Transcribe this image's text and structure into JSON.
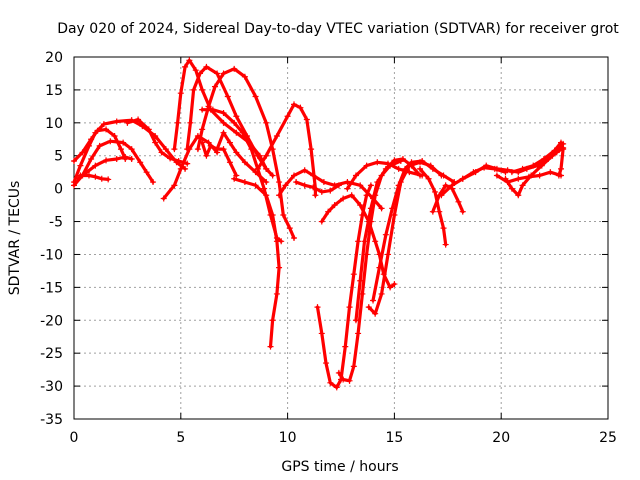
{
  "chart_data": {
    "type": "scatter",
    "title": "Day 020 of 2024, Sidereal Day-to-day VTEC variation (SDTVAR) for receiver grot",
    "xlabel": "GPS time / hours",
    "ylabel": "SDTVAR / TECUs",
    "xlim": [
      0,
      25
    ],
    "ylim": [
      -35,
      20
    ],
    "xticks": [
      0,
      5,
      10,
      15,
      20,
      25
    ],
    "yticks": [
      -35,
      -30,
      -25,
      -20,
      -15,
      -10,
      -5,
      0,
      5,
      10,
      15,
      20
    ],
    "grid": true,
    "marker": "+",
    "color": "#ff0000",
    "series": [
      {
        "points": [
          [
            0.0,
            1.0
          ],
          [
            0.3,
            3.5
          ],
          [
            0.7,
            6.5
          ],
          [
            1.0,
            8.5
          ],
          [
            1.4,
            9.8
          ],
          [
            2.0,
            10.2
          ],
          [
            2.7,
            10.4
          ],
          [
            3.2,
            9.5
          ],
          [
            3.8,
            8.0
          ],
          [
            4.3,
            6.0
          ],
          [
            4.8,
            4.0
          ],
          [
            5.2,
            3.0
          ]
        ]
      },
      {
        "points": [
          [
            0.0,
            0.5
          ],
          [
            0.4,
            2.0
          ],
          [
            0.8,
            4.5
          ],
          [
            1.2,
            6.5
          ],
          [
            1.7,
            7.2
          ],
          [
            2.3,
            7.0
          ],
          [
            2.7,
            6.0
          ],
          [
            3.1,
            4.0
          ],
          [
            3.4,
            2.5
          ],
          [
            3.7,
            1.0
          ]
        ]
      },
      {
        "points": [
          [
            0.0,
            4.2
          ],
          [
            0.4,
            5.5
          ],
          [
            0.8,
            7.5
          ],
          [
            1.1,
            8.8
          ],
          [
            1.5,
            9.0
          ],
          [
            1.9,
            8.0
          ],
          [
            2.2,
            6.0
          ],
          [
            2.4,
            4.5
          ]
        ]
      },
      {
        "points": [
          [
            0.2,
            1.5
          ],
          [
            0.6,
            2.5
          ],
          [
            1.0,
            3.5
          ],
          [
            1.5,
            4.3
          ],
          [
            2.0,
            4.5
          ],
          [
            2.4,
            4.8
          ],
          [
            2.7,
            4.5
          ]
        ]
      },
      {
        "points": [
          [
            0.3,
            2.0
          ],
          [
            0.7,
            2.0
          ],
          [
            1.0,
            1.8
          ],
          [
            1.3,
            1.5
          ],
          [
            1.6,
            1.4
          ]
        ]
      },
      {
        "points": [
          [
            2.5,
            10.0
          ],
          [
            3.0,
            10.5
          ],
          [
            3.5,
            9.0
          ],
          [
            3.8,
            7.0
          ],
          [
            4.1,
            5.5
          ],
          [
            4.5,
            4.6
          ],
          [
            4.9,
            4.2
          ],
          [
            5.3,
            3.8
          ]
        ]
      },
      {
        "points": [
          [
            4.2,
            -1.5
          ],
          [
            4.7,
            0.5
          ],
          [
            5.0,
            3.0
          ],
          [
            5.4,
            6.0
          ],
          [
            5.8,
            8.0
          ],
          [
            6.3,
            7.0
          ],
          [
            6.7,
            5.5
          ]
        ]
      },
      {
        "points": [
          [
            4.7,
            6.0
          ],
          [
            4.85,
            10.0
          ],
          [
            5.0,
            14.5
          ],
          [
            5.2,
            18.5
          ],
          [
            5.4,
            19.5
          ],
          [
            5.7,
            18.0
          ],
          [
            6.0,
            15.0
          ],
          [
            6.4,
            12.0
          ],
          [
            7.0,
            10.0
          ],
          [
            7.6,
            8.5
          ],
          [
            8.2,
            7.0
          ],
          [
            8.7,
            5.0
          ],
          [
            9.0,
            3.0
          ]
        ]
      },
      {
        "points": [
          [
            5.3,
            6.0
          ],
          [
            5.45,
            10.0
          ],
          [
            5.6,
            15.0
          ],
          [
            5.9,
            17.5
          ],
          [
            6.2,
            18.5
          ],
          [
            6.7,
            17.5
          ],
          [
            7.2,
            14.0
          ],
          [
            7.6,
            11.0
          ],
          [
            8.1,
            8.0
          ],
          [
            8.6,
            5.0
          ],
          [
            9.0,
            3.0
          ],
          [
            9.3,
            2.0
          ]
        ]
      },
      {
        "points": [
          [
            5.8,
            6.0
          ],
          [
            6.0,
            9.0
          ],
          [
            6.3,
            12.5
          ],
          [
            6.6,
            15.5
          ],
          [
            7.0,
            17.5
          ],
          [
            7.5,
            18.2
          ],
          [
            8.0,
            17.0
          ],
          [
            8.5,
            14.0
          ],
          [
            9.0,
            10.0
          ],
          [
            9.3,
            6.0
          ],
          [
            9.6,
            1.0
          ],
          [
            9.8,
            -4.0
          ],
          [
            10.1,
            -6.0
          ],
          [
            10.3,
            -7.5
          ]
        ]
      },
      {
        "points": [
          [
            6.0,
            12.0
          ],
          [
            6.5,
            12.0
          ],
          [
            7.0,
            11.5
          ],
          [
            7.5,
            10.0
          ],
          [
            7.9,
            8.5
          ],
          [
            8.3,
            6.0
          ],
          [
            8.6,
            3.0
          ],
          [
            8.9,
            0.0
          ],
          [
            9.2,
            -4.0
          ],
          [
            9.5,
            -7.5
          ],
          [
            9.7,
            -8.0
          ]
        ]
      },
      {
        "points": [
          [
            6.0,
            7.0
          ],
          [
            6.2,
            5.0
          ],
          [
            6.4,
            6.5
          ],
          [
            6.7,
            6.0
          ],
          [
            7.0,
            6.0
          ],
          [
            7.3,
            4.0
          ],
          [
            7.6,
            2.0
          ]
        ]
      },
      {
        "points": [
          [
            6.7,
            6.0
          ],
          [
            7.0,
            8.5
          ],
          [
            7.3,
            7.0
          ],
          [
            7.6,
            5.5
          ],
          [
            8.0,
            4.0
          ],
          [
            8.5,
            2.5
          ],
          [
            9.0,
            1.0
          ]
        ]
      },
      {
        "points": [
          [
            7.5,
            1.5
          ],
          [
            8.0,
            1.0
          ],
          [
            8.5,
            0.5
          ],
          [
            9.0,
            -1.0
          ],
          [
            9.3,
            -4.0
          ],
          [
            9.5,
            -8.0
          ],
          [
            9.6,
            -12.0
          ],
          [
            9.5,
            -16.0
          ],
          [
            9.3,
            -20.0
          ],
          [
            9.2,
            -24.0
          ]
        ]
      },
      {
        "points": [
          [
            8.6,
            3.0
          ],
          [
            9.0,
            5.0
          ],
          [
            9.5,
            8.0
          ],
          [
            10.0,
            11.0
          ],
          [
            10.3,
            12.8
          ],
          [
            10.6,
            12.3
          ],
          [
            10.9,
            10.5
          ],
          [
            11.1,
            6.0
          ],
          [
            11.3,
            0.0
          ],
          [
            11.3,
            -1.0
          ]
        ]
      },
      {
        "points": [
          [
            9.6,
            -1.0
          ],
          [
            9.9,
            0.5
          ],
          [
            10.3,
            2.0
          ],
          [
            10.8,
            2.8
          ],
          [
            11.2,
            2.0
          ],
          [
            11.7,
            1.0
          ],
          [
            12.2,
            0.5
          ],
          [
            12.8,
            1.0
          ],
          [
            13.4,
            0.5
          ],
          [
            14.0,
            -1.5
          ],
          [
            14.4,
            -3.0
          ]
        ]
      },
      {
        "points": [
          [
            10.4,
            1.0
          ],
          [
            10.8,
            0.5
          ],
          [
            11.2,
            0.2
          ],
          [
            11.6,
            -0.5
          ],
          [
            12.0,
            -0.3
          ],
          [
            12.4,
            0.5
          ]
        ]
      },
      {
        "points": [
          [
            11.6,
            -5.0
          ],
          [
            11.9,
            -3.5
          ],
          [
            12.2,
            -2.5
          ],
          [
            12.6,
            -1.5
          ],
          [
            13.0,
            -1.0
          ],
          [
            13.4,
            -2.5
          ],
          [
            13.8,
            -5.0
          ],
          [
            14.1,
            -8.0
          ],
          [
            14.3,
            -10.0
          ],
          [
            14.5,
            -13.0
          ],
          [
            14.8,
            -15.0
          ],
          [
            15.0,
            -14.5
          ]
        ]
      },
      {
        "points": [
          [
            11.4,
            -18.0
          ],
          [
            11.6,
            -22.0
          ],
          [
            11.8,
            -26.5
          ],
          [
            12.0,
            -29.5
          ],
          [
            12.3,
            -30.2
          ],
          [
            12.5,
            -29.0
          ],
          [
            12.7,
            -24.0
          ],
          [
            12.9,
            -18.0
          ],
          [
            13.1,
            -13.0
          ],
          [
            13.3,
            -8.0
          ],
          [
            13.5,
            -4.0
          ],
          [
            13.7,
            -1.0
          ],
          [
            13.9,
            0.5
          ]
        ]
      },
      {
        "points": [
          [
            12.4,
            -28.0
          ],
          [
            12.6,
            -29.0
          ],
          [
            12.9,
            -29.2
          ],
          [
            13.1,
            -27.0
          ],
          [
            13.3,
            -22.0
          ],
          [
            13.5,
            -16.0
          ],
          [
            13.7,
            -10.0
          ],
          [
            13.9,
            -5.0
          ],
          [
            14.1,
            -1.0
          ],
          [
            14.4,
            2.0
          ],
          [
            14.8,
            3.5
          ],
          [
            15.3,
            4.2
          ]
        ]
      },
      {
        "points": [
          [
            13.2,
            -20.0
          ],
          [
            13.4,
            -14.0
          ],
          [
            13.6,
            -8.0
          ],
          [
            13.9,
            -3.0
          ],
          [
            14.2,
            1.0
          ],
          [
            14.6,
            3.0
          ],
          [
            15.0,
            4.3
          ],
          [
            15.4,
            4.5
          ],
          [
            15.8,
            3.5
          ],
          [
            16.2,
            2.0
          ]
        ]
      },
      {
        "points": [
          [
            14.0,
            -17.0
          ],
          [
            14.3,
            -12.0
          ],
          [
            14.6,
            -7.0
          ],
          [
            14.9,
            -3.0
          ],
          [
            15.2,
            0.5
          ],
          [
            15.5,
            3.0
          ],
          [
            15.8,
            4.0
          ],
          [
            16.3,
            4.2
          ],
          [
            16.8,
            3.0
          ],
          [
            17.3,
            2.0
          ],
          [
            17.8,
            1.0
          ]
        ]
      },
      {
        "points": [
          [
            13.8,
            -18.0
          ],
          [
            14.1,
            -19.0
          ],
          [
            14.4,
            -16.0
          ],
          [
            14.7,
            -10.0
          ],
          [
            15.0,
            -4.0
          ],
          [
            15.3,
            1.0
          ],
          [
            15.7,
            3.5
          ],
          [
            16.2,
            4.0
          ],
          [
            16.7,
            3.5
          ],
          [
            17.2,
            2.0
          ]
        ]
      },
      {
        "points": [
          [
            12.8,
            0.0
          ],
          [
            13.2,
            2.0
          ],
          [
            13.7,
            3.5
          ],
          [
            14.2,
            4.0
          ],
          [
            14.7,
            3.8
          ],
          [
            15.2,
            3.0
          ],
          [
            15.7,
            2.5
          ],
          [
            16.3,
            2.0
          ]
        ]
      },
      {
        "points": [
          [
            16.2,
            3.0
          ],
          [
            16.6,
            1.5
          ],
          [
            16.9,
            -0.5
          ],
          [
            17.1,
            -3.5
          ],
          [
            17.3,
            -6.0
          ],
          [
            17.4,
            -8.5
          ]
        ]
      },
      {
        "points": [
          [
            16.8,
            -3.5
          ],
          [
            17.1,
            -1.0
          ],
          [
            17.4,
            0.5
          ],
          [
            17.7,
            0.0
          ],
          [
            18.0,
            -2.0
          ],
          [
            18.2,
            -3.5
          ]
        ]
      },
      {
        "points": [
          [
            17.2,
            -1.0
          ],
          [
            17.7,
            0.5
          ],
          [
            18.2,
            1.5
          ],
          [
            18.7,
            2.5
          ],
          [
            19.2,
            3.2
          ],
          [
            19.7,
            3.0
          ],
          [
            20.2,
            2.5
          ]
        ]
      },
      {
        "points": [
          [
            18.2,
            1.5
          ],
          [
            18.8,
            2.5
          ],
          [
            19.3,
            3.5
          ],
          [
            19.8,
            3.0
          ],
          [
            20.3,
            2.8
          ],
          [
            20.8,
            2.5
          ],
          [
            21.2,
            3.0
          ],
          [
            21.7,
            3.5
          ],
          [
            22.2,
            4.5
          ],
          [
            22.6,
            5.5
          ],
          [
            22.9,
            6.2
          ]
        ]
      },
      {
        "points": [
          [
            20.2,
            1.5
          ],
          [
            20.5,
            0.0
          ],
          [
            20.8,
            -1.0
          ],
          [
            21.0,
            0.5
          ],
          [
            21.4,
            2.0
          ],
          [
            21.9,
            3.5
          ],
          [
            22.4,
            5.0
          ],
          [
            22.8,
            6.5
          ],
          [
            22.9,
            6.8
          ]
        ]
      },
      {
        "points": [
          [
            20.5,
            2.5
          ],
          [
            21.0,
            3.0
          ],
          [
            21.5,
            3.5
          ],
          [
            22.0,
            4.5
          ],
          [
            22.5,
            5.8
          ],
          [
            22.8,
            7.0
          ],
          [
            22.9,
            6.0
          ],
          [
            22.8,
            3.0
          ],
          [
            22.7,
            2.0
          ]
        ]
      },
      {
        "points": [
          [
            19.8,
            2.0
          ],
          [
            20.3,
            1.0
          ],
          [
            20.8,
            1.5
          ],
          [
            21.3,
            1.8
          ],
          [
            21.8,
            2.0
          ],
          [
            22.3,
            2.5
          ],
          [
            22.8,
            2.0
          ]
        ]
      }
    ]
  }
}
